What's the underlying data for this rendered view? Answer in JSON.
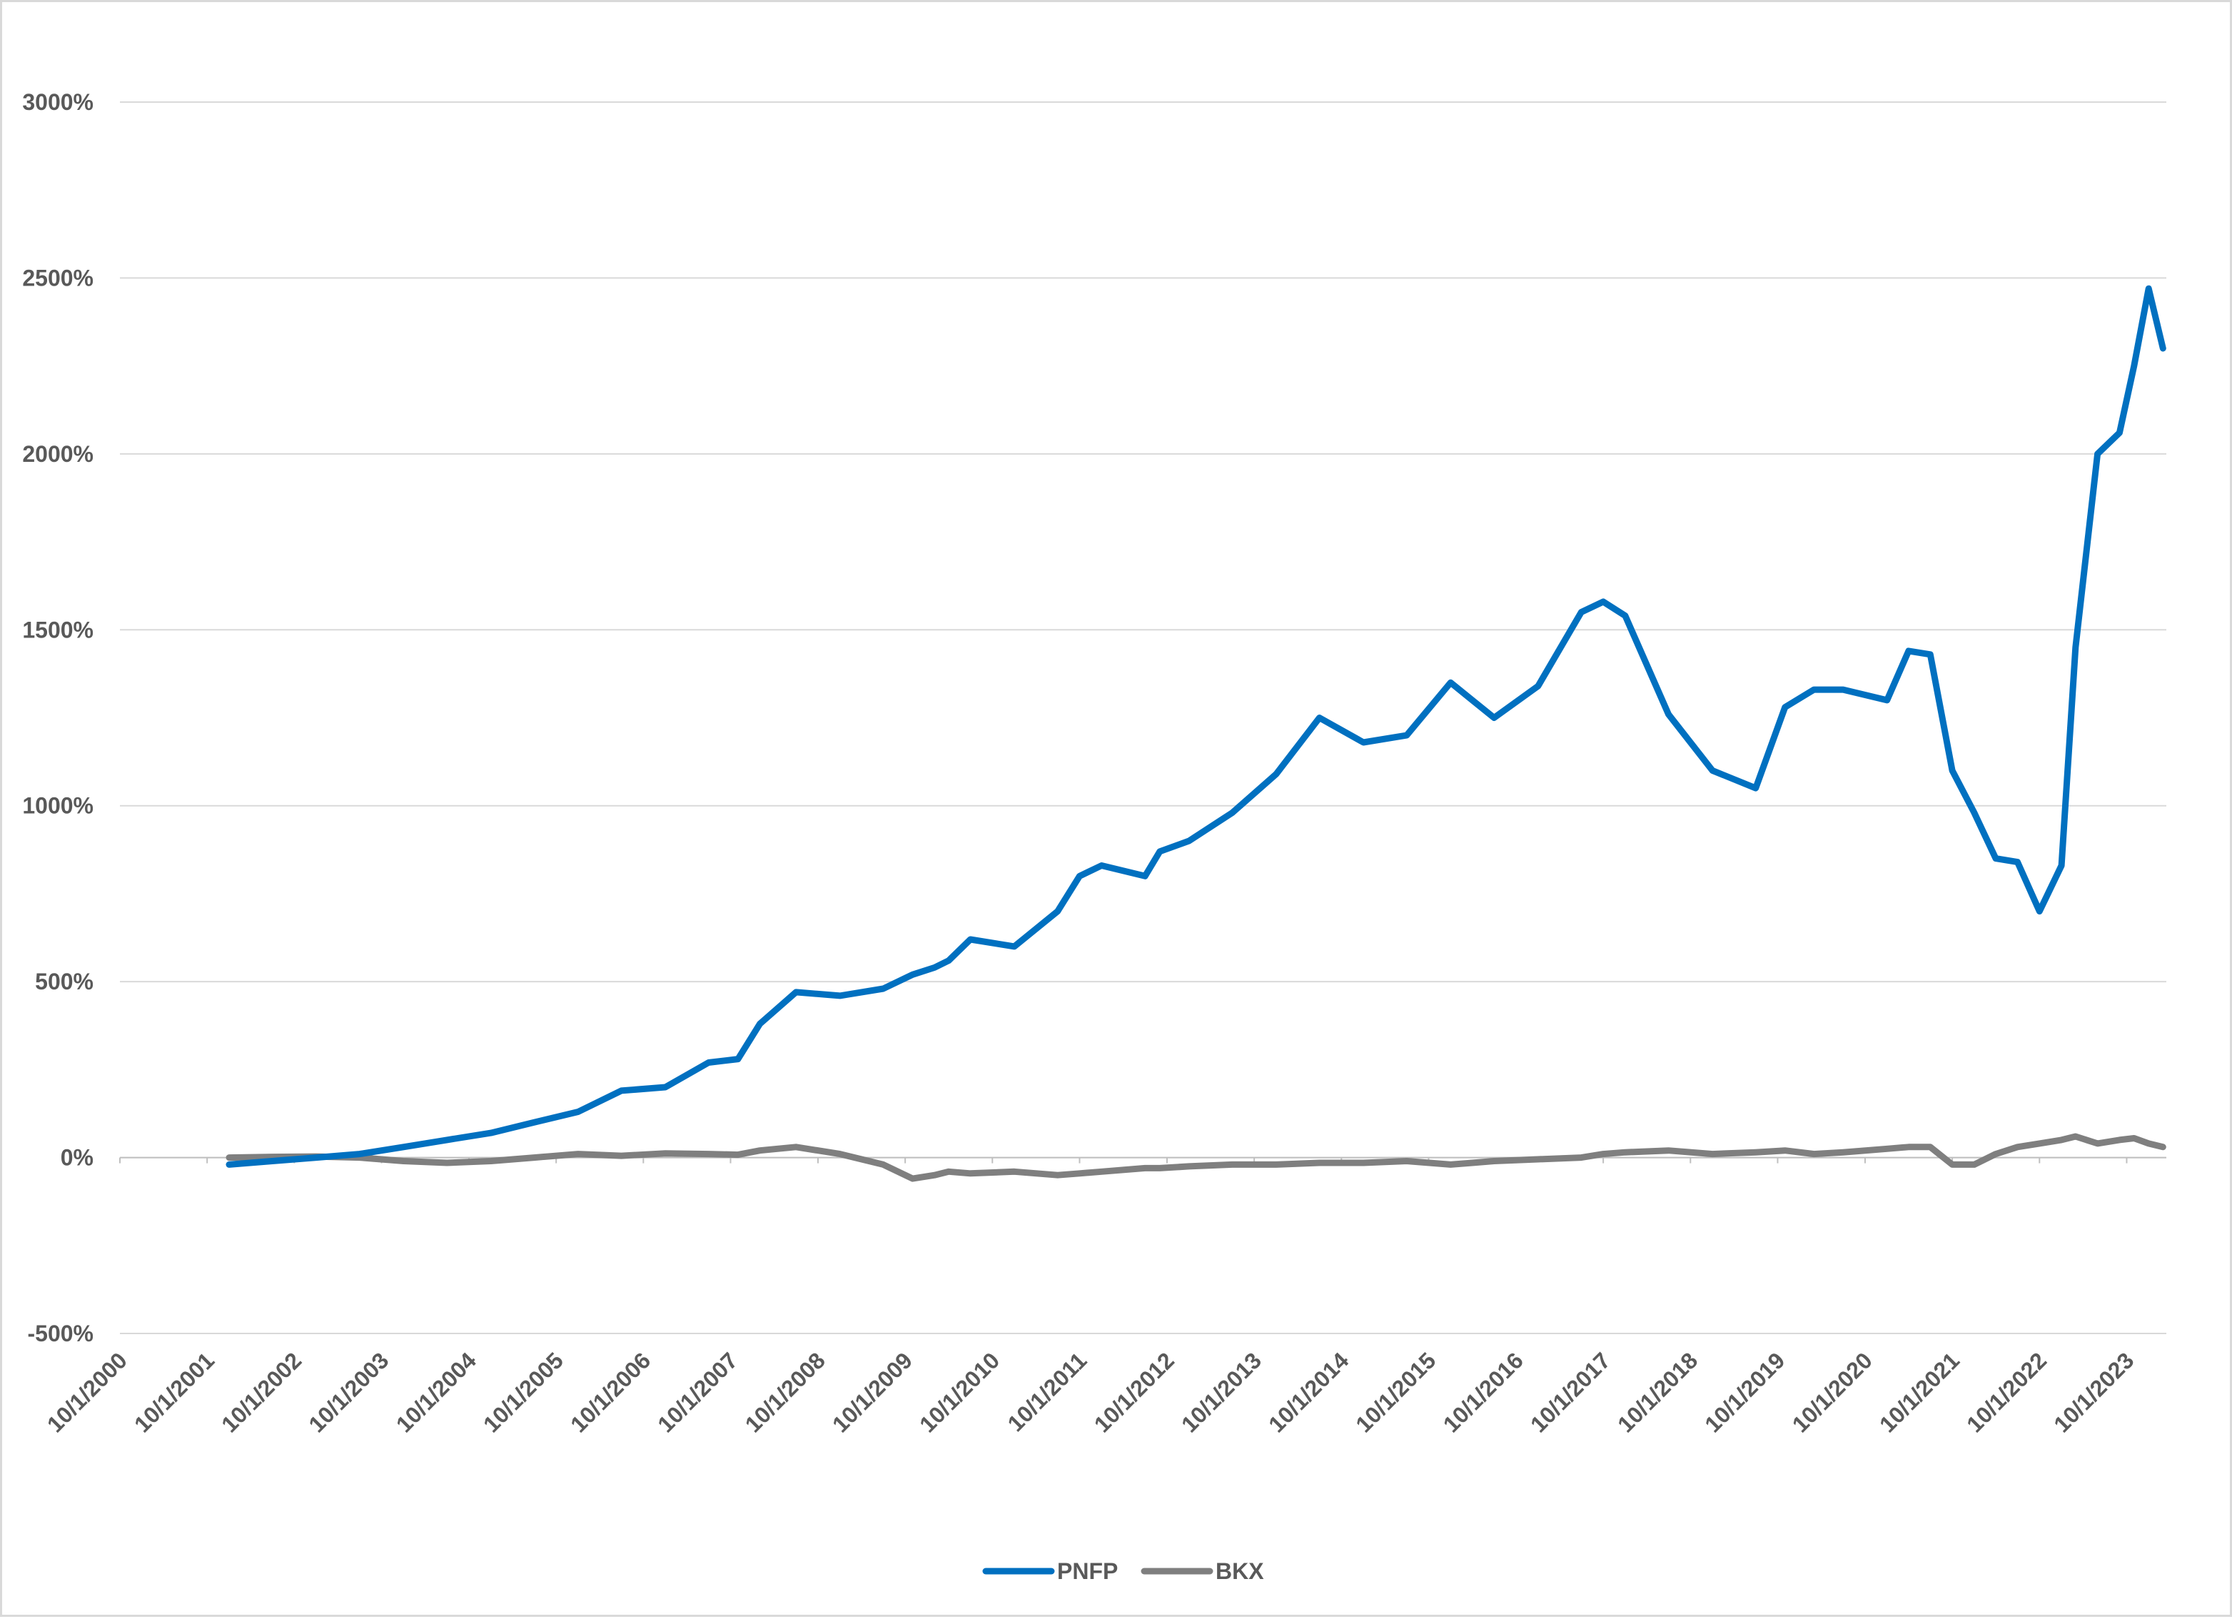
{
  "chart_data": {
    "type": "line",
    "title": "",
    "xlabel": "",
    "ylabel": "",
    "y_unit": "%",
    "ylim": [
      -500,
      3000
    ],
    "y_ticks": [
      -500,
      0,
      500,
      1000,
      1500,
      2000,
      2500,
      3000
    ],
    "y_tick_labels": [
      "-500%",
      "0%",
      "500%",
      "1000%",
      "1500%",
      "2000%",
      "2500%",
      "3000%"
    ],
    "x_tick_labels": [
      "10/1/2000",
      "10/1/2001",
      "10/1/2002",
      "10/1/2003",
      "10/1/2004",
      "10/1/2005",
      "10/1/2006",
      "10/1/2007",
      "10/1/2008",
      "10/1/2009",
      "10/1/2010",
      "10/1/2011",
      "10/1/2012",
      "10/1/2013",
      "10/1/2014",
      "10/1/2015",
      "10/1/2016",
      "10/1/2017",
      "10/1/2018",
      "10/1/2019",
      "10/1/2020",
      "10/1/2021",
      "10/1/2022",
      "10/1/2023"
    ],
    "xlim": [
      "2000-10-01",
      "2024-03-15"
    ],
    "grid": "horizontal",
    "legend_position": "bottom",
    "x": [
      "2002-01-01",
      "2002-07-01",
      "2003-01-01",
      "2003-07-01",
      "2004-01-01",
      "2004-07-01",
      "2005-01-01",
      "2005-07-01",
      "2006-01-01",
      "2006-07-01",
      "2007-01-01",
      "2007-07-01",
      "2007-11-01",
      "2008-02-01",
      "2008-07-01",
      "2009-01-01",
      "2009-07-01",
      "2009-11-01",
      "2010-02-01",
      "2010-04-01",
      "2010-07-01",
      "2011-01-01",
      "2011-07-01",
      "2011-10-01",
      "2012-01-01",
      "2012-07-01",
      "2012-09-01",
      "2013-01-01",
      "2013-07-01",
      "2014-01-01",
      "2014-07-01",
      "2015-01-01",
      "2015-07-01",
      "2016-01-01",
      "2016-04-01",
      "2016-07-01",
      "2017-01-01",
      "2017-07-01",
      "2017-10-01",
      "2018-01-01",
      "2018-07-01",
      "2019-01-01",
      "2019-07-01",
      "2019-11-01",
      "2020-03-01",
      "2020-07-01",
      "2021-01-01",
      "2021-04-01",
      "2021-07-01",
      "2021-10-01",
      "2022-01-01",
      "2022-04-01",
      "2022-07-01",
      "2022-10-01",
      "2023-01-01",
      "2023-03-01",
      "2023-06-01",
      "2023-09-01",
      "2023-11-01",
      "2024-01-01",
      "2024-03-01"
    ],
    "series": [
      {
        "name": "PNFP",
        "color": "#0070c0",
        "values": [
          -20,
          -10,
          0,
          10,
          30,
          50,
          70,
          100,
          130,
          190,
          200,
          270,
          280,
          380,
          470,
          460,
          480,
          520,
          540,
          560,
          620,
          600,
          700,
          800,
          830,
          800,
          870,
          900,
          980,
          1090,
          1250,
          1180,
          1200,
          1350,
          1300,
          1250,
          1340,
          1550,
          1580,
          1540,
          1260,
          1100,
          1050,
          1280,
          1330,
          1330,
          1300,
          1440,
          1430,
          1100,
          980,
          850,
          840,
          700,
          830,
          1450,
          2000,
          2060,
          2250,
          2470,
          2300
        ]
      },
      {
        "name": "BKX",
        "color": "#7f7f7f",
        "values": [
          0,
          2,
          3,
          0,
          -10,
          -15,
          -10,
          0,
          10,
          5,
          12,
          10,
          8,
          20,
          30,
          10,
          -20,
          -60,
          -50,
          -40,
          -45,
          -40,
          -50,
          -45,
          -40,
          -30,
          -30,
          -25,
          -20,
          -20,
          -15,
          -15,
          -10,
          -20,
          -15,
          -10,
          -5,
          0,
          10,
          15,
          20,
          10,
          15,
          20,
          10,
          15,
          25,
          30,
          30,
          -20,
          -20,
          10,
          30,
          40,
          50,
          60,
          40,
          50,
          55,
          40,
          30
        ]
      }
    ]
  }
}
